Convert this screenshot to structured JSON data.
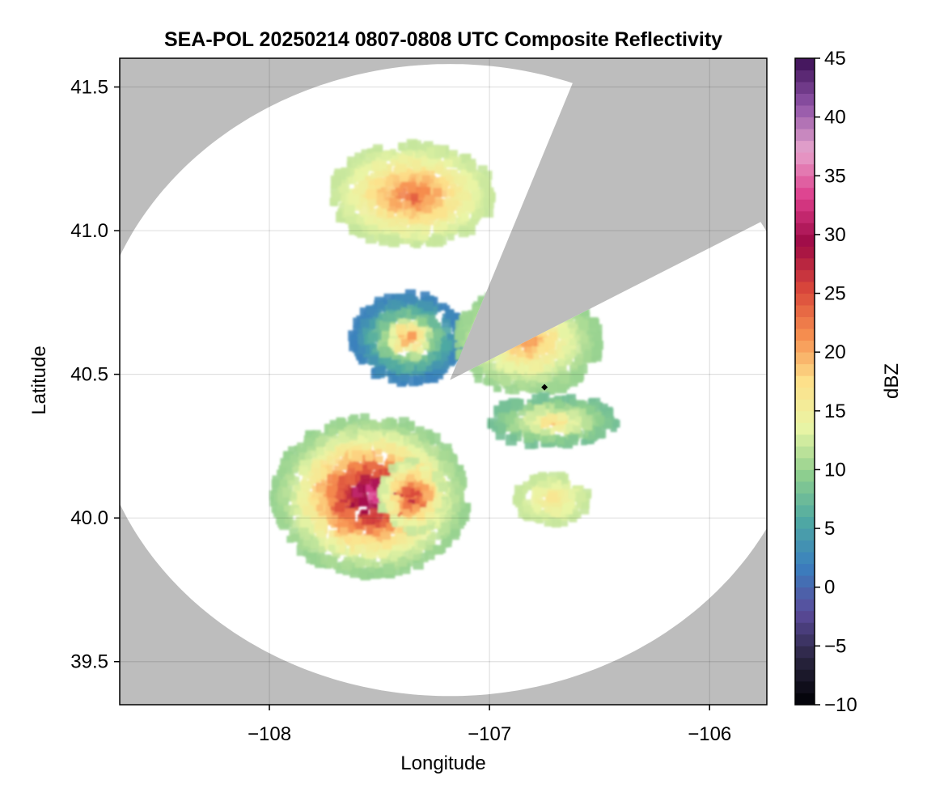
{
  "chart_data": {
    "type": "heatmap",
    "title": "SEA-POL 20250214 0807-0808 UTC Composite Reflectivity",
    "xlabel": "Longitude",
    "ylabel": "Latitude",
    "xlim": [
      -108.68,
      -105.74
    ],
    "ylim": [
      39.35,
      41.6
    ],
    "xticks": [
      -108,
      -107,
      -106
    ],
    "xtick_labels": [
      "−108",
      "−107",
      "−106"
    ],
    "yticks": [
      39.5,
      40.0,
      40.5,
      41.0,
      41.5
    ],
    "ytick_labels": [
      "39.5",
      "40.0",
      "40.5",
      "41.0",
      "41.5"
    ],
    "grid": true,
    "background_color": "#bdbdbd",
    "coverage_color": "#ffffff",
    "radar_center": {
      "lon": -107.18,
      "lat": 40.48
    },
    "coverage_radius_lon_deg": 1.63,
    "coverage_radius_lat_deg": 1.1,
    "blocked_sector_compass_deg": [
      20,
      60
    ],
    "site_marker": {
      "lon": -106.75,
      "lat": 40.455,
      "shape": "diamond",
      "color": "#000000"
    },
    "colorbar": {
      "label": "dBZ",
      "min": -10,
      "max": 45,
      "ticks": [
        -10,
        -5,
        0,
        5,
        10,
        15,
        20,
        25,
        30,
        35,
        40,
        45
      ],
      "tick_labels": [
        "−10",
        "−5",
        "0",
        "5",
        "10",
        "15",
        "20",
        "25",
        "30",
        "35",
        "40",
        "45"
      ],
      "colors": [
        "#000004",
        "#2a2540",
        "#5a4a9a",
        "#3a7fbf",
        "#4fa9a2",
        "#8fcf8e",
        "#e9f5a5",
        "#fde08a",
        "#f68e4f",
        "#d9473b",
        "#9e0a45",
        "#dd3e8c",
        "#e7a4cc",
        "#8e52a6",
        "#3b0f55"
      ]
    },
    "echo_regions": [
      {
        "name": "northern band",
        "lon_range": [
          -107.72,
          -106.98
        ],
        "lat_range": [
          40.95,
          41.3
        ],
        "min_dbz": 12,
        "peak_dbz": 26
      },
      {
        "name": "central band west",
        "lon_range": [
          -107.62,
          -107.12
        ],
        "lat_range": [
          40.47,
          40.78
        ],
        "min_dbz": 2,
        "peak_dbz": 24
      },
      {
        "name": "central band east",
        "lon_range": [
          -107.15,
          -106.5
        ],
        "lat_range": [
          40.43,
          40.8
        ],
        "min_dbz": 10,
        "peak_dbz": 23
      },
      {
        "name": "southeast streak",
        "lon_range": [
          -107.0,
          -106.42
        ],
        "lat_range": [
          40.25,
          40.42
        ],
        "min_dbz": 8,
        "peak_dbz": 20
      },
      {
        "name": "southwest convection",
        "lon_range": [
          -107.98,
          -107.1
        ],
        "lat_range": [
          39.8,
          40.35
        ],
        "min_dbz": 10,
        "peak_dbz": 38
      },
      {
        "name": "south core",
        "lon_range": [
          -107.5,
          -107.2
        ],
        "lat_range": [
          39.95,
          40.2
        ],
        "min_dbz": 12,
        "peak_dbz": 32
      },
      {
        "name": "southeast echo",
        "lon_range": [
          -106.88,
          -106.55
        ],
        "lat_range": [
          39.98,
          40.15
        ],
        "min_dbz": 12,
        "peak_dbz": 18
      }
    ]
  }
}
